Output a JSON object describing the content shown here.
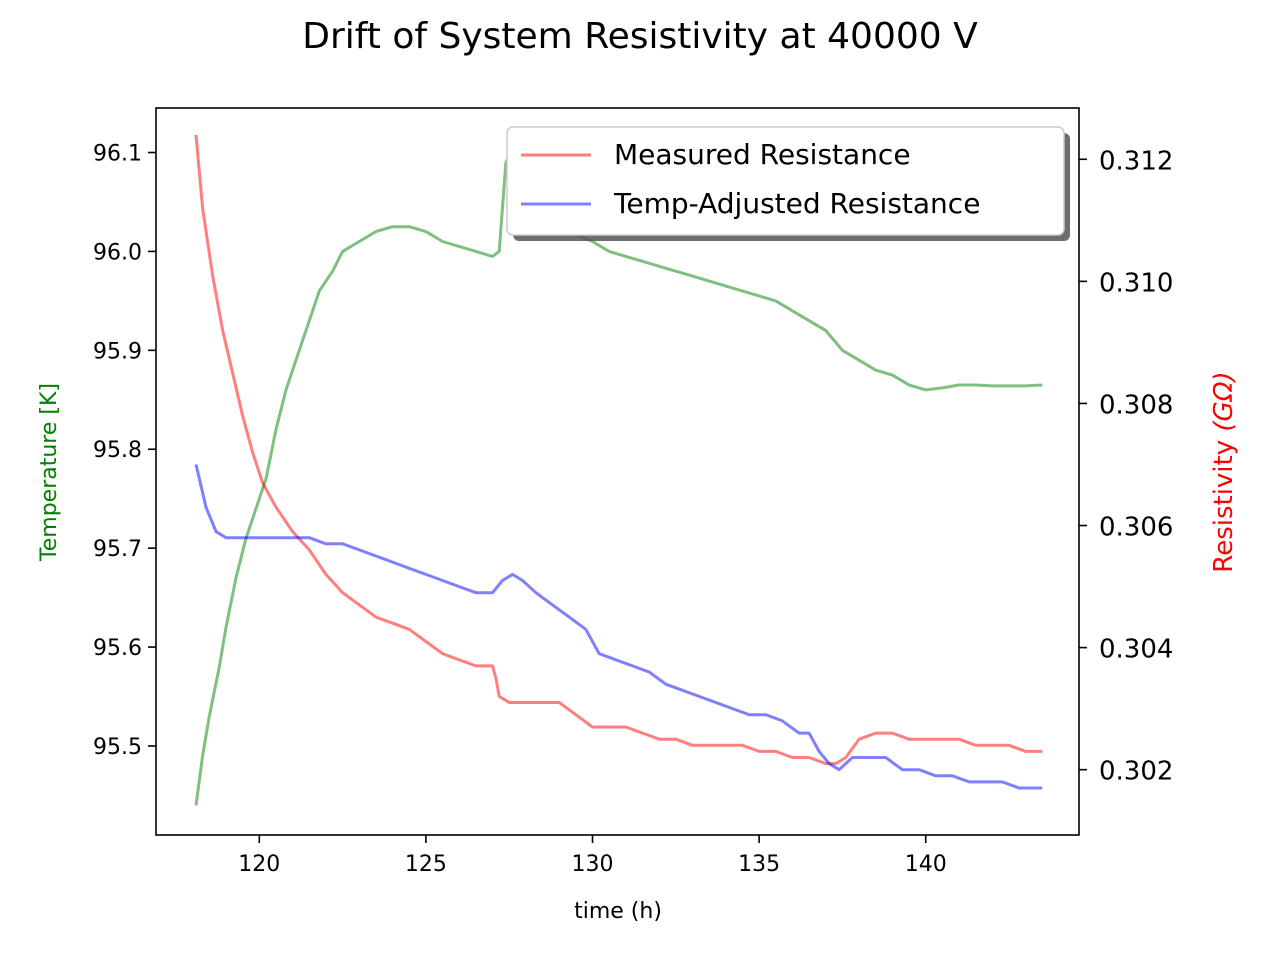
{
  "chart_data": {
    "type": "line",
    "title": "Drift of System Resistivity at 40000 V",
    "xlabel": "time (h)",
    "ylabel_left": "Temperature [K]",
    "ylabel_right_main": "Resistivity ",
    "ylabel_right_unit": "(GΩ)",
    "xlim": [
      116.9,
      144.6
    ],
    "ylim_left": [
      95.41,
      96.145
    ],
    "ylim_right": [
      0.30093,
      0.31284
    ],
    "x_ticks": [
      120,
      125,
      130,
      135,
      140
    ],
    "y_left_ticks": [
      95.5,
      95.6,
      95.7,
      95.8,
      95.9,
      96.0,
      96.1
    ],
    "y_right_ticks": [
      0.302,
      0.304,
      0.306,
      0.308,
      0.31,
      0.312
    ],
    "grid": false,
    "legend_position": "top-right",
    "colors": {
      "temperature": "#008000",
      "measured": "#ff0000",
      "adjusted": "#0000ff",
      "left_label": "#008000",
      "right_label": "#ff0000"
    },
    "series": [
      {
        "key": "temperature",
        "axis": "left",
        "x": [
          118.1,
          118.3,
          118.5,
          118.8,
          119.0,
          119.3,
          119.6,
          119.9,
          120.2,
          120.5,
          120.8,
          121.2,
          121.5,
          121.8,
          122.2,
          122.5,
          123.0,
          123.5,
          124.0,
          124.5,
          125.0,
          125.5,
          126.0,
          126.5,
          127.0,
          127.2,
          127.4,
          127.7,
          128.2,
          128.8,
          129.3,
          130.0,
          130.5,
          131.0,
          131.5,
          132.0,
          132.5,
          133.0,
          133.5,
          134.0,
          134.5,
          135.0,
          135.5,
          136.0,
          136.5,
          137.0,
          137.5,
          138.0,
          138.5,
          139.0,
          139.5,
          140.0,
          140.5,
          141.0,
          141.5,
          142.0,
          142.5,
          143.0,
          143.5
        ],
        "values": [
          95.44,
          95.49,
          95.53,
          95.58,
          95.62,
          95.67,
          95.71,
          95.74,
          95.77,
          95.82,
          95.86,
          95.9,
          95.93,
          95.96,
          95.98,
          96.0,
          96.01,
          96.02,
          96.025,
          96.025,
          96.02,
          96.01,
          96.005,
          96.0,
          95.995,
          96.0,
          96.09,
          96.11,
          96.06,
          96.03,
          96.02,
          96.01,
          96.0,
          95.995,
          95.99,
          95.985,
          95.98,
          95.975,
          95.97,
          95.965,
          95.96,
          95.955,
          95.95,
          95.94,
          95.93,
          95.92,
          95.9,
          95.89,
          95.88,
          95.875,
          95.865,
          95.86,
          95.862,
          95.865,
          95.865,
          95.864,
          95.864,
          95.864,
          95.865
        ]
      },
      {
        "name": "Measured Resistance",
        "key": "measured",
        "axis": "right",
        "x": [
          118.1,
          118.3,
          118.6,
          118.9,
          119.2,
          119.5,
          119.8,
          120.1,
          120.5,
          121.0,
          121.5,
          122.0,
          122.5,
          123.0,
          123.5,
          124.0,
          124.5,
          125.0,
          125.5,
          126.0,
          126.5,
          127.0,
          127.1,
          127.2,
          127.5,
          128.0,
          128.5,
          129.0,
          129.5,
          130.0,
          130.5,
          131.0,
          131.5,
          132.0,
          132.5,
          133.0,
          133.5,
          134.0,
          134.5,
          135.0,
          135.5,
          136.0,
          136.5,
          137.0,
          137.3,
          137.6,
          138.0,
          138.5,
          139.0,
          139.5,
          140.0,
          140.5,
          141.0,
          141.5,
          142.0,
          142.5,
          143.0,
          143.5
        ],
        "values": [
          0.3124,
          0.3112,
          0.3101,
          0.3092,
          0.3085,
          0.3078,
          0.3072,
          0.3067,
          0.3063,
          0.3059,
          0.3056,
          0.3052,
          0.3049,
          0.3047,
          0.3045,
          0.3044,
          0.3043,
          0.3041,
          0.3039,
          0.3038,
          0.3037,
          0.3037,
          0.3035,
          0.3032,
          0.3031,
          0.3031,
          0.3031,
          0.3031,
          0.3029,
          0.3027,
          0.3027,
          0.3027,
          0.3026,
          0.3025,
          0.3025,
          0.3024,
          0.3024,
          0.3024,
          0.3024,
          0.3023,
          0.3023,
          0.3022,
          0.3022,
          0.3021,
          0.3021,
          0.3022,
          0.3025,
          0.3026,
          0.3026,
          0.3025,
          0.3025,
          0.3025,
          0.3025,
          0.3024,
          0.3024,
          0.3024,
          0.3023,
          0.3023
        ]
      },
      {
        "name": "Temp-Adjusted Resistance",
        "key": "adjusted",
        "axis": "right",
        "x": [
          118.1,
          118.4,
          118.7,
          119.0,
          119.5,
          120.0,
          120.5,
          121.0,
          121.5,
          122.0,
          122.5,
          123.0,
          123.5,
          124.0,
          124.5,
          125.0,
          125.5,
          126.0,
          126.5,
          127.0,
          127.3,
          127.6,
          127.9,
          128.3,
          128.8,
          129.3,
          129.8,
          130.2,
          130.7,
          131.2,
          131.7,
          132.2,
          132.7,
          133.2,
          133.7,
          134.2,
          134.7,
          135.2,
          135.7,
          136.2,
          136.5,
          136.8,
          137.1,
          137.4,
          137.8,
          138.3,
          138.8,
          139.3,
          139.8,
          140.3,
          140.8,
          141.3,
          141.8,
          142.3,
          142.8,
          143.5
        ],
        "values": [
          0.307,
          0.3063,
          0.3059,
          0.3058,
          0.3058,
          0.3058,
          0.3058,
          0.3058,
          0.3058,
          0.3057,
          0.3057,
          0.3056,
          0.3055,
          0.3054,
          0.3053,
          0.3052,
          0.3051,
          0.305,
          0.3049,
          0.3049,
          0.3051,
          0.3052,
          0.3051,
          0.3049,
          0.3047,
          0.3045,
          0.3043,
          0.3039,
          0.3038,
          0.3037,
          0.3036,
          0.3034,
          0.3033,
          0.3032,
          0.3031,
          0.303,
          0.3029,
          0.3029,
          0.3028,
          0.3026,
          0.3026,
          0.3023,
          0.3021,
          0.302,
          0.3022,
          0.3022,
          0.3022,
          0.302,
          0.302,
          0.3019,
          0.3019,
          0.3018,
          0.3018,
          0.3018,
          0.3017,
          0.3017
        ]
      }
    ]
  }
}
